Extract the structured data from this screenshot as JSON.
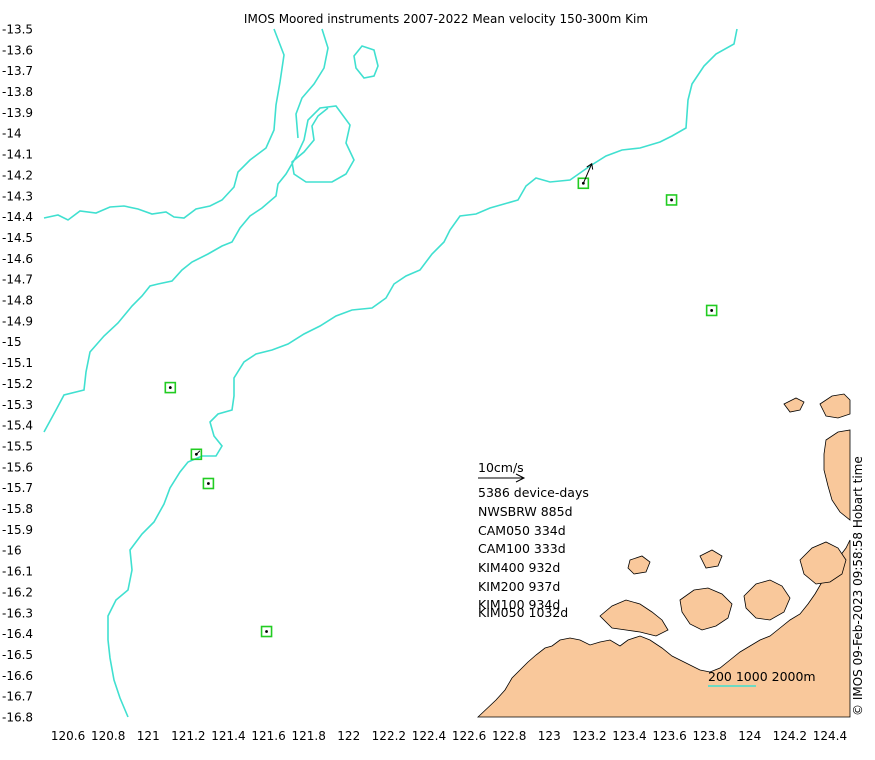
{
  "title": "IMOS Moored instruments 2007-2022 Mean velocity 150-300m Kim",
  "credit": "© IMOS 09-Feb-2023 09:58:58 Hobart time",
  "lat_ticks": [
    "-13.5",
    "-13.6",
    "-13.7",
    "-13.8",
    "-13.9",
    "-14",
    "-14.1",
    "-14.2",
    "-14.3",
    "-14.4",
    "-14.5",
    "-14.6",
    "-14.7",
    "-14.8",
    "-14.9",
    "-15",
    "-15.1",
    "-15.2",
    "-15.3",
    "-15.4",
    "-15.5",
    "-15.6",
    "-15.7",
    "-15.8",
    "-15.9",
    "-16",
    "-16.1",
    "-16.2",
    "-16.3",
    "-16.4",
    "-16.5",
    "-16.6",
    "-16.7",
    "-16.8"
  ],
  "lon_ticks": [
    "120.6",
    "120.8",
    "121",
    "121.2",
    "121.4",
    "121.6",
    "121.8",
    "122",
    "122.2",
    "122.4",
    "122.6",
    "122.8",
    "123",
    "123.2",
    "123.4",
    "123.6",
    "123.8",
    "124",
    "124.2",
    "124.4"
  ],
  "legend": {
    "scale_label": "10cm/s",
    "device_days": "5386 device-days",
    "moorings": [
      "NWSBRW 885d",
      "CAM050 334d",
      "CAM100 333d",
      "KIM400 932d",
      "KIM200 937d",
      "KIM100 934d",
      "KIM050 1032d"
    ],
    "depth_contours": "200 1000 2000m"
  },
  "colors": {
    "land": "#f9c89b",
    "contour": "#40e0d0",
    "station_box": "#22cc22",
    "text": "#000000"
  },
  "stations": [
    {
      "lon": 123.17,
      "lat": -14.24
    },
    {
      "lon": 123.61,
      "lat": -14.32
    },
    {
      "lon": 123.81,
      "lat": -14.85
    },
    {
      "lon": 121.11,
      "lat": -15.22
    },
    {
      "lon": 121.24,
      "lat": -15.54
    },
    {
      "lon": 121.3,
      "lat": -15.68
    },
    {
      "lon": 121.59,
      "lat": -16.39
    }
  ],
  "vectors": [
    {
      "lon": 123.17,
      "lat": -14.24,
      "u": 0.6,
      "v": 1.4
    },
    {
      "lon": 121.24,
      "lat": -15.54,
      "u": 0.25,
      "v": 0.25
    },
    {
      "lon": 121.11,
      "lat": -15.22,
      "u": 0.0,
      "v": 0.1
    }
  ]
}
